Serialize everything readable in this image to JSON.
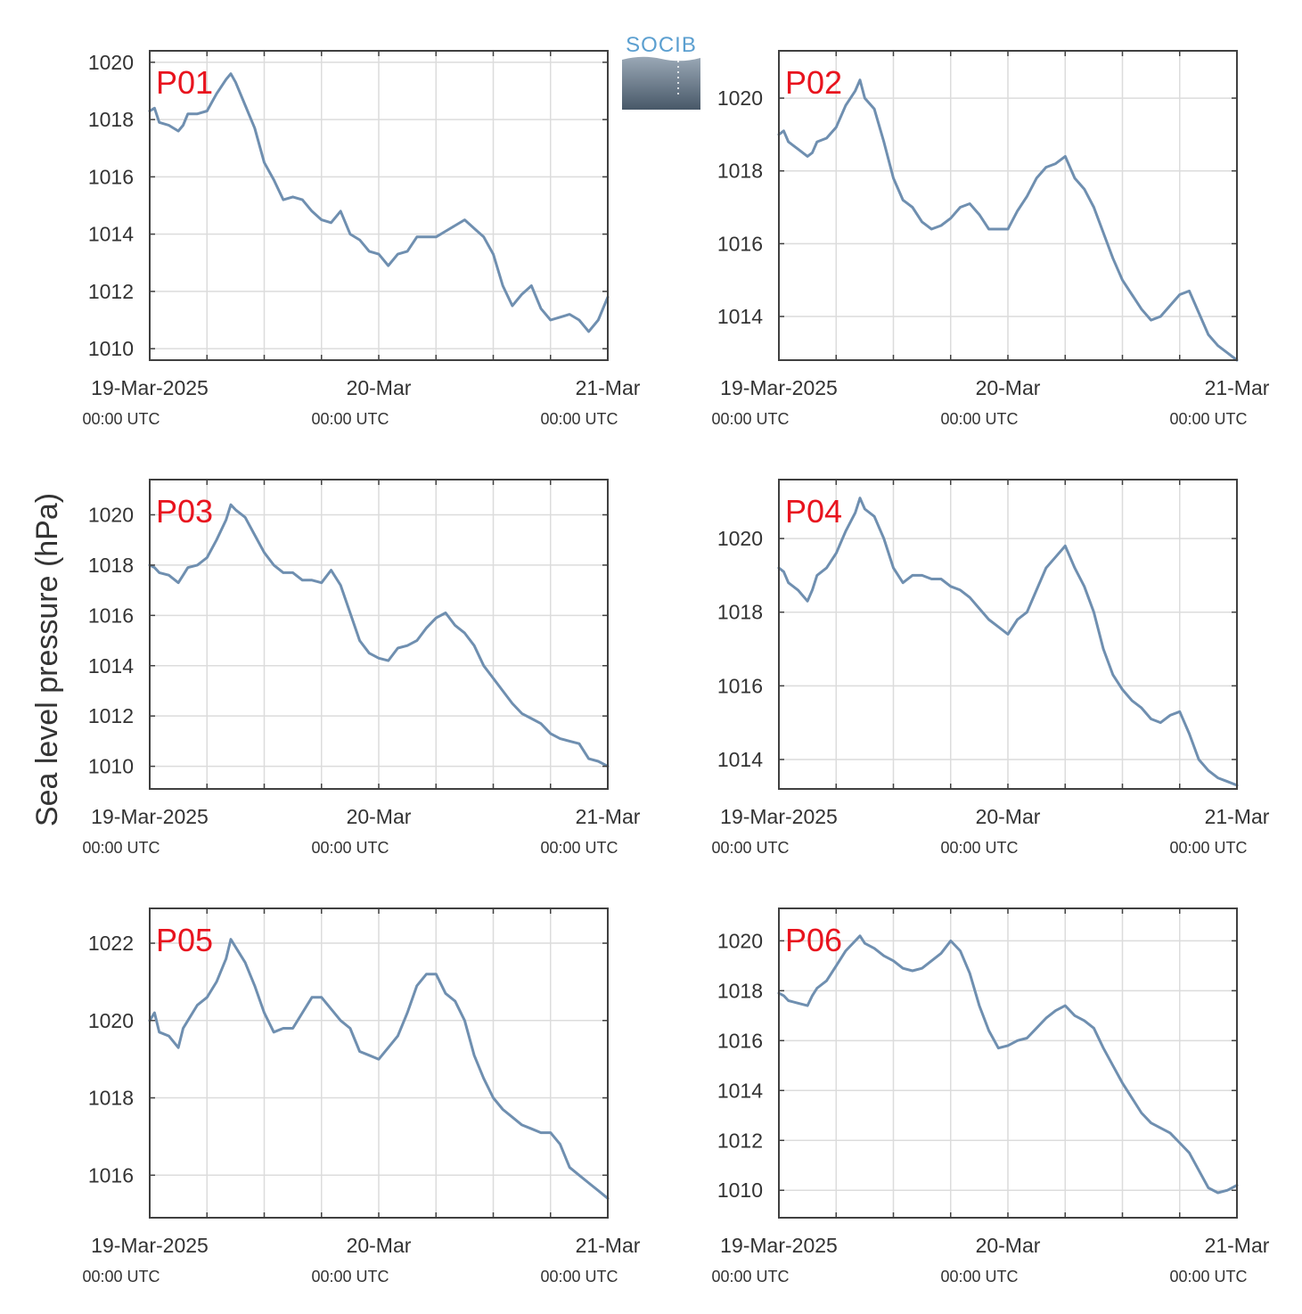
{
  "figure": {
    "ylabel": "Sea level pressure (hPa)",
    "logo_text": "SOCIB",
    "colors": {
      "line": "#6f8fb0",
      "title": "#e8141e",
      "grid": "#dcdcdc",
      "axis": "#404040",
      "text": "#333333",
      "logo_text": "#5b9fd0"
    },
    "x_tick_labels": [
      "19-Mar-2025",
      "20-Mar",
      "21-Mar"
    ],
    "x_tick_sublabels": [
      "00:00 UTC",
      "00:00 UTC",
      "00:00 UTC"
    ]
  },
  "chart_data": [
    {
      "type": "line",
      "title": "P01",
      "x_unit": "hours since 19-Mar-2025 00:00 UTC",
      "xlim": [
        0,
        48
      ],
      "ylim": [
        1009.6,
        1020.4
      ],
      "yticks": [
        1010,
        1012,
        1014,
        1016,
        1018,
        1020
      ],
      "x": [
        0,
        0.5,
        1,
        2,
        3,
        3.5,
        4,
        5,
        6,
        7,
        8,
        8.5,
        9,
        10,
        11,
        12,
        13,
        14,
        15,
        16,
        17,
        18,
        19,
        20,
        21,
        22,
        23,
        24,
        25,
        26,
        27,
        28,
        29,
        30,
        31,
        32,
        33,
        34,
        35,
        36,
        37,
        38,
        39,
        40,
        41,
        42,
        43,
        44,
        45,
        46,
        47,
        48
      ],
      "values": [
        1018.3,
        1018.4,
        1017.9,
        1017.8,
        1017.6,
        1017.8,
        1018.2,
        1018.2,
        1018.3,
        1018.9,
        1019.4,
        1019.6,
        1019.3,
        1018.5,
        1017.7,
        1016.5,
        1015.9,
        1015.2,
        1015.3,
        1015.2,
        1014.8,
        1014.5,
        1014.4,
        1014.8,
        1014.0,
        1013.8,
        1013.4,
        1013.3,
        1012.9,
        1013.3,
        1013.4,
        1013.9,
        1013.9,
        1013.9,
        1014.1,
        1014.3,
        1014.5,
        1014.2,
        1013.9,
        1013.3,
        1012.2,
        1011.5,
        1011.9,
        1012.2,
        1011.4,
        1011.0,
        1011.1,
        1011.2,
        1011.0,
        1010.6,
        1011.0,
        1011.8
      ]
    },
    {
      "type": "line",
      "title": "P02",
      "x_unit": "hours since 19-Mar-2025 00:00 UTC",
      "xlim": [
        0,
        48
      ],
      "ylim": [
        1012.8,
        1021.3
      ],
      "yticks": [
        1014,
        1016,
        1018,
        1020
      ],
      "x": [
        0,
        0.5,
        1,
        2,
        3,
        3.5,
        4,
        5,
        6,
        7,
        8,
        8.5,
        9,
        10,
        11,
        12,
        13,
        14,
        15,
        16,
        17,
        18,
        19,
        20,
        21,
        22,
        23,
        24,
        25,
        26,
        27,
        28,
        29,
        30,
        31,
        32,
        33,
        34,
        35,
        36,
        37,
        38,
        39,
        40,
        41,
        42,
        43,
        44,
        45,
        46,
        47,
        48
      ],
      "values": [
        1019.0,
        1019.1,
        1018.8,
        1018.6,
        1018.4,
        1018.5,
        1018.8,
        1018.9,
        1019.2,
        1019.8,
        1020.2,
        1020.5,
        1020.0,
        1019.7,
        1018.8,
        1017.8,
        1017.2,
        1017.0,
        1016.6,
        1016.4,
        1016.5,
        1016.7,
        1017.0,
        1017.1,
        1016.8,
        1016.4,
        1016.4,
        1016.4,
        1016.9,
        1017.3,
        1017.8,
        1018.1,
        1018.2,
        1018.4,
        1017.8,
        1017.5,
        1017.0,
        1016.3,
        1015.6,
        1015.0,
        1014.6,
        1014.2,
        1013.9,
        1014.0,
        1014.3,
        1014.6,
        1014.7,
        1014.1,
        1013.5,
        1013.2,
        1013.0,
        1012.8
      ]
    },
    {
      "type": "line",
      "title": "P03",
      "x_unit": "hours since 19-Mar-2025 00:00 UTC",
      "xlim": [
        0,
        48
      ],
      "ylim": [
        1009.1,
        1021.4
      ],
      "yticks": [
        1010,
        1012,
        1014,
        1016,
        1018,
        1020
      ],
      "x": [
        0,
        0.5,
        1,
        2,
        3,
        3.5,
        4,
        5,
        6,
        7,
        8,
        8.5,
        9,
        10,
        11,
        12,
        13,
        14,
        15,
        16,
        17,
        18,
        19,
        20,
        21,
        22,
        23,
        24,
        25,
        26,
        27,
        28,
        29,
        30,
        31,
        32,
        33,
        34,
        35,
        36,
        37,
        38,
        39,
        40,
        41,
        42,
        43,
        44,
        45,
        46,
        47,
        48
      ],
      "values": [
        1018.0,
        1017.9,
        1017.7,
        1017.6,
        1017.3,
        1017.6,
        1017.9,
        1018.0,
        1018.3,
        1019.0,
        1019.8,
        1020.4,
        1020.2,
        1019.9,
        1019.2,
        1018.5,
        1018.0,
        1017.7,
        1017.7,
        1017.4,
        1017.4,
        1017.3,
        1017.8,
        1017.2,
        1016.1,
        1015.0,
        1014.5,
        1014.3,
        1014.2,
        1014.7,
        1014.8,
        1015.0,
        1015.5,
        1015.9,
        1016.1,
        1015.6,
        1015.3,
        1014.8,
        1014.0,
        1013.5,
        1013.0,
        1012.5,
        1012.1,
        1011.9,
        1011.7,
        1011.3,
        1011.1,
        1011.0,
        1010.9,
        1010.3,
        1010.2,
        1010.0
      ]
    },
    {
      "type": "line",
      "title": "P04",
      "x_unit": "hours since 19-Mar-2025 00:00 UTC",
      "xlim": [
        0,
        48
      ],
      "ylim": [
        1013.2,
        1021.6
      ],
      "yticks": [
        1014,
        1016,
        1018,
        1020
      ],
      "x": [
        0,
        0.5,
        1,
        2,
        3,
        3.5,
        4,
        5,
        6,
        7,
        8,
        8.5,
        9,
        10,
        11,
        12,
        13,
        14,
        15,
        16,
        17,
        18,
        19,
        20,
        21,
        22,
        23,
        24,
        25,
        26,
        27,
        28,
        29,
        30,
        31,
        32,
        33,
        34,
        35,
        36,
        37,
        38,
        39,
        40,
        41,
        42,
        43,
        44,
        45,
        46,
        47,
        48
      ],
      "values": [
        1019.2,
        1019.1,
        1018.8,
        1018.6,
        1018.3,
        1018.6,
        1019.0,
        1019.2,
        1019.6,
        1020.2,
        1020.7,
        1021.1,
        1020.8,
        1020.6,
        1020.0,
        1019.2,
        1018.8,
        1019.0,
        1019.0,
        1018.9,
        1018.9,
        1018.7,
        1018.6,
        1018.4,
        1018.1,
        1017.8,
        1017.6,
        1017.4,
        1017.8,
        1018.0,
        1018.6,
        1019.2,
        1019.5,
        1019.8,
        1019.2,
        1018.7,
        1018.0,
        1017.0,
        1016.3,
        1015.9,
        1015.6,
        1015.4,
        1015.1,
        1015.0,
        1015.2,
        1015.3,
        1014.7,
        1014.0,
        1013.7,
        1013.5,
        1013.4,
        1013.3
      ]
    },
    {
      "type": "line",
      "title": "P05",
      "x_unit": "hours since 19-Mar-2025 00:00 UTC",
      "xlim": [
        0,
        48
      ],
      "ylim": [
        1014.9,
        1022.9
      ],
      "yticks": [
        1016,
        1018,
        1020,
        1022
      ],
      "x": [
        0,
        0.5,
        1,
        2,
        3,
        3.5,
        4,
        5,
        6,
        7,
        8,
        8.5,
        9,
        10,
        11,
        12,
        13,
        14,
        15,
        16,
        17,
        18,
        19,
        20,
        21,
        22,
        23,
        24,
        25,
        26,
        27,
        28,
        29,
        30,
        31,
        32,
        33,
        34,
        35,
        36,
        37,
        38,
        39,
        40,
        41,
        42,
        43,
        44,
        45,
        46,
        47,
        48
      ],
      "values": [
        1020.0,
        1020.2,
        1019.7,
        1019.6,
        1019.3,
        1019.8,
        1020.0,
        1020.4,
        1020.6,
        1021.0,
        1021.6,
        1022.1,
        1021.9,
        1021.5,
        1020.9,
        1020.2,
        1019.7,
        1019.8,
        1019.8,
        1020.2,
        1020.6,
        1020.6,
        1020.3,
        1020.0,
        1019.8,
        1019.2,
        1019.1,
        1019.0,
        1019.3,
        1019.6,
        1020.2,
        1020.9,
        1021.2,
        1021.2,
        1020.7,
        1020.5,
        1020.0,
        1019.1,
        1018.5,
        1018.0,
        1017.7,
        1017.5,
        1017.3,
        1017.2,
        1017.1,
        1017.1,
        1016.8,
        1016.2,
        1016.0,
        1015.8,
        1015.6,
        1015.4
      ]
    },
    {
      "type": "line",
      "title": "P06",
      "x_unit": "hours since 19-Mar-2025 00:00 UTC",
      "xlim": [
        0,
        48
      ],
      "ylim": [
        1008.9,
        1021.3
      ],
      "yticks": [
        1010,
        1012,
        1014,
        1016,
        1018,
        1020
      ],
      "x": [
        0,
        0.5,
        1,
        2,
        3,
        3.5,
        4,
        5,
        6,
        7,
        8,
        8.5,
        9,
        10,
        11,
        12,
        13,
        14,
        15,
        16,
        17,
        18,
        19,
        20,
        21,
        22,
        23,
        24,
        25,
        26,
        27,
        28,
        29,
        30,
        31,
        32,
        33,
        34,
        35,
        36,
        37,
        38,
        39,
        40,
        41,
        42,
        43,
        44,
        45,
        46,
        47,
        48
      ],
      "values": [
        1017.9,
        1017.8,
        1017.6,
        1017.5,
        1017.4,
        1017.8,
        1018.1,
        1018.4,
        1019.0,
        1019.6,
        1020.0,
        1020.2,
        1019.9,
        1019.7,
        1019.4,
        1019.2,
        1018.9,
        1018.8,
        1018.9,
        1019.2,
        1019.5,
        1020.0,
        1019.6,
        1018.7,
        1017.4,
        1016.4,
        1015.7,
        1015.8,
        1016.0,
        1016.1,
        1016.5,
        1016.9,
        1017.2,
        1017.4,
        1017.0,
        1016.8,
        1016.5,
        1015.7,
        1015.0,
        1014.3,
        1013.7,
        1013.1,
        1012.7,
        1012.5,
        1012.3,
        1011.9,
        1011.5,
        1010.8,
        1010.1,
        1009.9,
        1010.0,
        1010.2
      ]
    }
  ]
}
